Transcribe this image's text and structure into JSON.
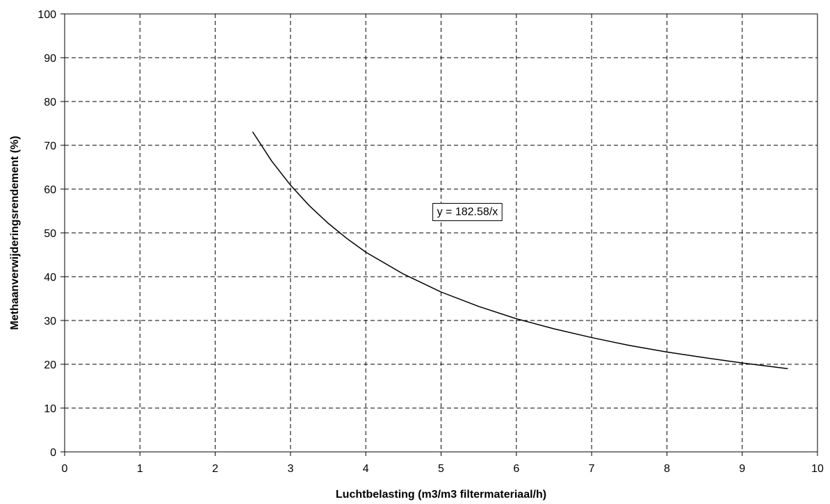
{
  "chart_data": {
    "type": "line",
    "title": "",
    "xlabel": "Luchtbelasting (m3/m3 filtermateriaal/h)",
    "ylabel": "Methaanverwijderingsrendement (%)",
    "xlim": [
      0,
      10
    ],
    "ylim": [
      0,
      100
    ],
    "x_ticks": [
      "0",
      "1",
      "2",
      "3",
      "4",
      "5",
      "6",
      "7",
      "8",
      "9",
      "10"
    ],
    "y_ticks": [
      "0",
      "10",
      "20",
      "30",
      "40",
      "50",
      "60",
      "70",
      "80",
      "90",
      "100"
    ],
    "grid": true,
    "grid_style": "dashed",
    "legend": "none",
    "series": [
      {
        "color": "#000000",
        "x": [
          2.5,
          2.75,
          3.0,
          3.25,
          3.5,
          3.75,
          4.0,
          4.5,
          5.0,
          5.5,
          6.0,
          6.5,
          7.0,
          7.5,
          8.0,
          8.5,
          9.0,
          9.6
        ],
        "y": [
          73.0,
          66.4,
          60.9,
          56.2,
          52.2,
          48.7,
          45.6,
          40.6,
          36.5,
          33.2,
          30.4,
          28.1,
          26.1,
          24.3,
          22.8,
          21.5,
          20.3,
          19.0
        ]
      }
    ],
    "annotations": [
      {
        "text": "y = 182.58/x",
        "x": 5.35,
        "y": 55
      }
    ]
  }
}
